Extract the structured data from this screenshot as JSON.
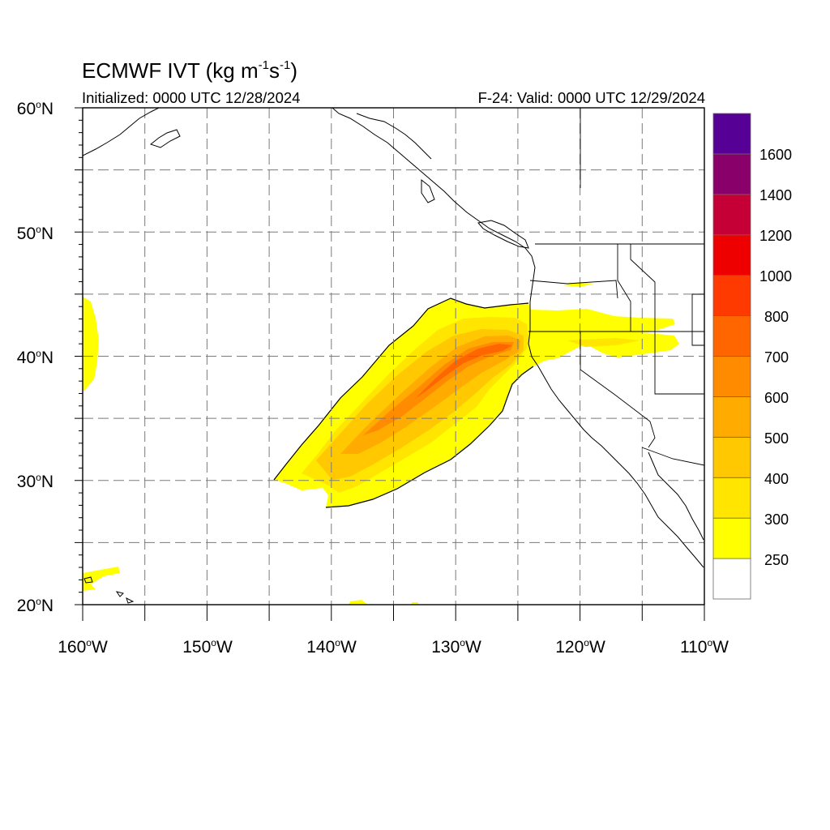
{
  "header": {
    "title_main": "ECMWF IVT (kg m",
    "title_sup1": "-1",
    "title_mid": "s",
    "title_sup2": "-1",
    "title_end": ")",
    "initialized": "Initialized: 0000 UTC 12/28/2024",
    "valid": "F-24: Valid: 0000 UTC 12/29/2024"
  },
  "axes": {
    "lat_labels": [
      {
        "deg": "60",
        "hemi": "N"
      },
      {
        "deg": "50",
        "hemi": "N"
      },
      {
        "deg": "40",
        "hemi": "N"
      },
      {
        "deg": "30",
        "hemi": "N"
      },
      {
        "deg": "20",
        "hemi": "N"
      }
    ],
    "lon_labels": [
      {
        "deg": "160",
        "hemi": "W"
      },
      {
        "deg": "150",
        "hemi": "W"
      },
      {
        "deg": "140",
        "hemi": "W"
      },
      {
        "deg": "130",
        "hemi": "W"
      },
      {
        "deg": "120",
        "hemi": "W"
      },
      {
        "deg": "110",
        "hemi": "W"
      }
    ],
    "lat_range": [
      20,
      60
    ],
    "lon_range": [
      -160,
      -110
    ],
    "grid": "dashed, every 5 degrees"
  },
  "colorbar": {
    "labels": [
      "250",
      "300",
      "400",
      "500",
      "600",
      "700",
      "800",
      "1000",
      "1200",
      "1400",
      "1600"
    ],
    "colors": [
      "#ffffff",
      "#ffff00",
      "#ffe500",
      "#ffc800",
      "#ffab00",
      "#ff8c00",
      "#ff6600",
      "#ff3a00",
      "#ee0000",
      "#c40036",
      "#8a006a",
      "#560096"
    ]
  },
  "field": {
    "variable": "Integrated Vapor Transport",
    "main_plume": "atmospheric river from ~30N 145W to northern California / Oregon",
    "max_value_range": "700-800"
  }
}
